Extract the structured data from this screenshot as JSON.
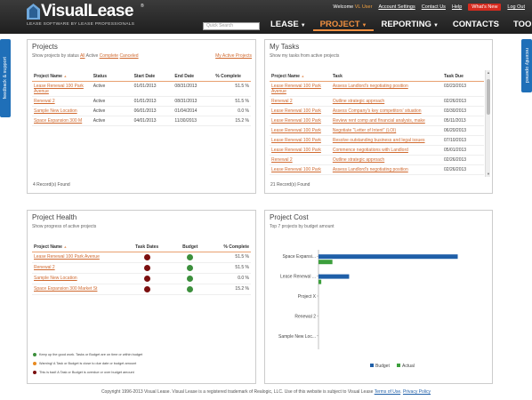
{
  "header": {
    "logo_text": "VisualLease",
    "logo_reg": "®",
    "tagline": "LEASE SOFTWARE BY LEASE PROFESSIONALS",
    "welcome": "Welcome",
    "user": "VL User",
    "links": [
      "Account Settings",
      "Contact Us",
      "Help"
    ],
    "whats_new": "What's New",
    "logout": "Log Out",
    "search_placeholder": "Quick Search",
    "nav": [
      {
        "label": "LEASE",
        "caret": "▼"
      },
      {
        "label": "PROJECT",
        "caret": "▼"
      },
      {
        "label": "REPORTING",
        "caret": "▼"
      },
      {
        "label": "CONTACTS",
        "caret": ""
      },
      {
        "label": "TOOLS",
        "caret": "▼"
      }
    ]
  },
  "side_tabs": {
    "left": "feedback & support",
    "right": "recently opened"
  },
  "projects": {
    "title": "Projects",
    "filter_prefix": "Show projects by status",
    "filters": [
      "All",
      "Active",
      "Complete",
      "Canceled"
    ],
    "my_active": "My Active Projects",
    "columns": [
      "Project Name",
      "Status",
      "Start Date",
      "End Date",
      "% Complete"
    ],
    "sort_arrow": "▲",
    "rows": [
      {
        "name": "Lease Renewal 100 Park Avenue",
        "status": "Active",
        "start": "01/01/2013",
        "end": "08/31/2013",
        "pct": "51.5 %"
      },
      {
        "name": "Renewal 2",
        "status": "Active",
        "start": "01/01/2013",
        "end": "08/31/2013",
        "pct": "51.5 %"
      },
      {
        "name": "Sample New Location",
        "status": "Active",
        "start": "06/01/2013",
        "end": "01/04/2014",
        "pct": "0.0 %"
      },
      {
        "name": "Space Expansion 300 M",
        "status": "Active",
        "start": "04/01/2013",
        "end": "11/30/2013",
        "pct": "15.2 %"
      }
    ],
    "records": "4 Record(s) Found"
  },
  "tasks": {
    "title": "My Tasks",
    "subtitle": "Show my tasks from active projects",
    "columns": [
      "Project Name",
      "Task",
      "Task Due"
    ],
    "sort_arrow": "▲",
    "rows": [
      {
        "project": "Lease Renewal 100 Park Avenue",
        "task": "Assess Landlord's negotiating position",
        "due": "03/23/2013"
      },
      {
        "project": "Renewal 2",
        "task": "Outline strategic approach",
        "due": "02/26/2013"
      },
      {
        "project": "Lease Renewal 100 Park",
        "task": "Assess Company's key competitors' situation",
        "due": "03/30/2013"
      },
      {
        "project": "Lease Renewal 100 Park",
        "task": "Review rent comp and financial analysis, make",
        "due": "05/11/2013"
      },
      {
        "project": "Lease Renewal 100 Park",
        "task": "Negotiate \"Letter of Intent\" (LOI)",
        "due": "06/20/2013"
      },
      {
        "project": "Lease Renewal 100 Park",
        "task": "Resolve outstanding business and legal issues",
        "due": "07/10/2013"
      },
      {
        "project": "Lease Renewal 100 Park",
        "task": "Commence negotiations with Landlord",
        "due": "05/01/2013"
      },
      {
        "project": "Renewal 2",
        "task": "Outline strategic approach",
        "due": "02/26/2013"
      },
      {
        "project": "Lease Renewal 100 Park",
        "task": "Assess Landlord's negotiating position",
        "due": "02/26/2013"
      }
    ],
    "records": "21 Record(s) Found"
  },
  "health": {
    "title": "Project Health",
    "subtitle": "Show progress of active projects",
    "columns": [
      "Project Name",
      "Task Dates",
      "Budget",
      "% Complete"
    ],
    "sort_arrow": "▲",
    "rows": [
      {
        "name": "Lease Renewal 100 Park Avenue",
        "task_dates": "red",
        "budget": "green",
        "pct": "51.5 %"
      },
      {
        "name": "Renewal 2",
        "task_dates": "red",
        "budget": "green",
        "pct": "51.5 %"
      },
      {
        "name": "Sample New Location",
        "task_dates": "red",
        "budget": "green",
        "pct": "0.0 %"
      },
      {
        "name": "Space Expansion 300 Market St",
        "task_dates": "red",
        "budget": "green",
        "pct": "15.2 %"
      }
    ],
    "legend": [
      {
        "color": "green",
        "text": "Keep up the good work. Tasks or Budget are on time or within budget"
      },
      {
        "color": "orange",
        "text": "Warning! A Task or Budget is close to due date or budget amount"
      },
      {
        "color": "red",
        "text": "This is bad! A Task or Budget is overdue or over budget amount"
      }
    ]
  },
  "cost": {
    "title": "Project Cost",
    "subtitle": "Top 7 projects by budget amount",
    "legend_budget": "Budget",
    "legend_actual": "Actual",
    "colors": {
      "budget": "#1f5fa8",
      "actual": "#3c9f3c"
    }
  },
  "chart_data": {
    "type": "bar",
    "orientation": "horizontal",
    "categories": [
      "Space Expansi...",
      "Lease Renewal ...",
      "Project X",
      "Renewal 2",
      "Sample New Loc..."
    ],
    "series": [
      {
        "name": "Budget",
        "values": [
          100,
          22,
          0,
          0,
          0
        ]
      },
      {
        "name": "Actual",
        "values": [
          10,
          2,
          0,
          0,
          0
        ]
      }
    ],
    "xlim": [
      0,
      115
    ],
    "grid": false,
    "legend": "bottom"
  },
  "footer": {
    "text": "Copyright 1996-2013 Visual Lease. Visual Lease is a registered trademark of Realogic, LLC.   Use of this website is subject to Visual Lease",
    "terms": "Terms of Use",
    "privacy": "Privacy Policy"
  }
}
